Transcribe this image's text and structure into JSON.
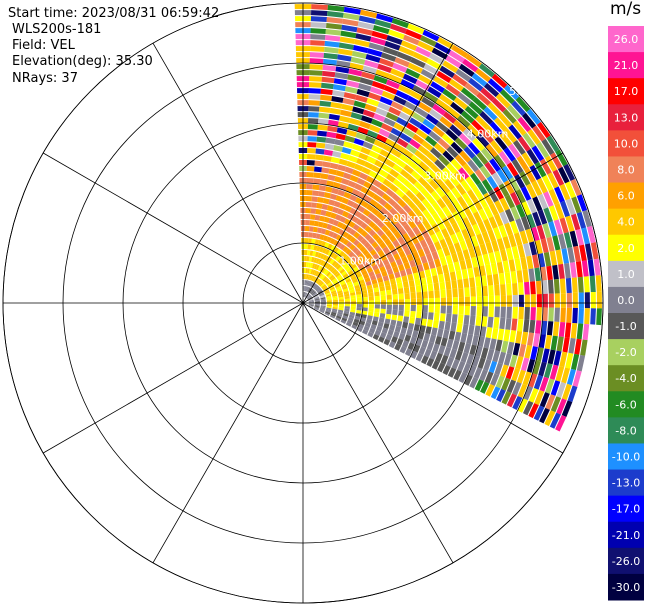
{
  "header": {
    "start_time": "Start time: 2023/08/31 06:59:42",
    "instrument": "WLS200s-181",
    "field": "Field: VEL",
    "elevation": "Elevation(deg): 35.30",
    "nrays": "NRays: 37"
  },
  "chart_data": {
    "type": "heatmap",
    "projection": "polar-ppi",
    "field": "VEL",
    "units": "m/s",
    "range_rings": [
      "1.00km",
      "2.00km",
      "3.00km",
      "4.00km",
      "5.00km"
    ],
    "rings_drawn": 6,
    "spokes_deg": [
      0,
      30,
      60,
      90,
      120,
      150,
      180,
      210,
      240,
      270,
      300,
      330
    ],
    "azimuth_coverage_deg": [
      0,
      115
    ],
    "n_rays": 37,
    "colorbar": {
      "unit": "m/s",
      "tick_labels": [
        "26.0",
        "21.0",
        "17.0",
        "13.0",
        "10.0",
        "8.0",
        "6.0",
        "4.0",
        "2.0",
        "1.0",
        "0.0",
        "-1.0",
        "-2.0",
        "-4.0",
        "-6.0",
        "-8.0",
        "-10.0",
        "-13.0",
        "-17.0",
        "-21.0",
        "-26.0",
        "-30.0"
      ],
      "colors": [
        "#ff66cc",
        "#ff1493",
        "#ff0000",
        "#e8203c",
        "#f2503a",
        "#f08258",
        "#ffa000",
        "#ffc800",
        "#ffff00",
        "#c0c0c8",
        "#808090",
        "#585858",
        "#a8d060",
        "#6b8e23",
        "#228b22",
        "#2e8b57",
        "#1e90ff",
        "#1c3ccc",
        "#0000ff",
        "#0000b0",
        "#101070",
        "#000040"
      ]
    },
    "field_structure": {
      "near_positive_region_mps": 6.0,
      "near_low_region_mps": 2.0,
      "near_radar_mps": 0.0,
      "far_region": "noisy"
    }
  }
}
